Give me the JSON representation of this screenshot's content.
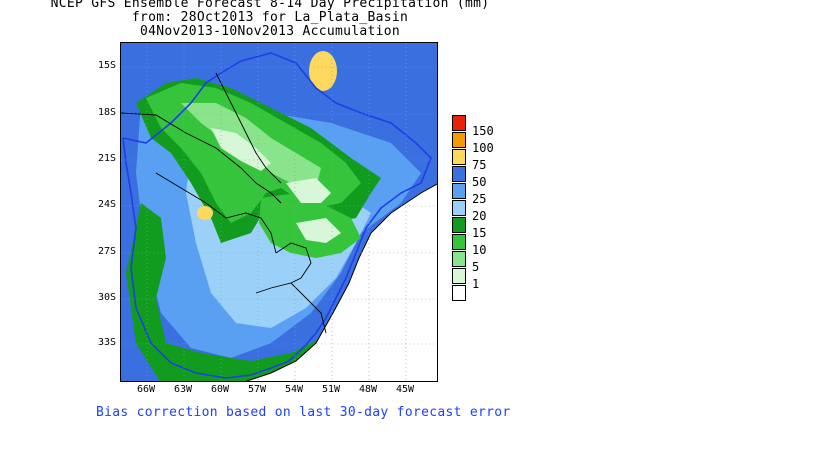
{
  "title": {
    "line1": "NCEP GFS Ensemble Forecast 8-14 Day Precipitation (mm)",
    "line2": "from: 28Oct2013  for La_Plata_Basin",
    "line3": "04Nov2013-10Nov2013 Accumulation"
  },
  "y_axis": {
    "labels": [
      "15S",
      "18S",
      "21S",
      "24S",
      "27S",
      "30S",
      "33S"
    ]
  },
  "x_axis": {
    "labels": [
      "66W",
      "63W",
      "60W",
      "57W",
      "54W",
      "51W",
      "48W",
      "45W"
    ]
  },
  "legend": {
    "items": [
      {
        "label": "150",
        "color": "#e8200c"
      },
      {
        "label": "100",
        "color": "#f59b00"
      },
      {
        "label": "75",
        "color": "#fcd85e"
      },
      {
        "label": "50",
        "color": "#3a6fe0"
      },
      {
        "label": "25",
        "color": "#5aa0f2"
      },
      {
        "label": "20",
        "color": "#9bd0f8"
      },
      {
        "label": "15",
        "color": "#129c1f"
      },
      {
        "label": "10",
        "color": "#37c43d"
      },
      {
        "label": "5",
        "color": "#8ae48c"
      },
      {
        "label": "1",
        "color": "#d8f7d8"
      },
      {
        "label": "",
        "color": "#ffffff"
      }
    ]
  },
  "footnote": "Bias correction based on last 30-day forecast error",
  "colors": {
    "basin_boundary": "#1f3fe6",
    "country_border": "#000000",
    "grid_dots": "#9a9a9a",
    "footnote_text": "#1e40ff"
  }
}
